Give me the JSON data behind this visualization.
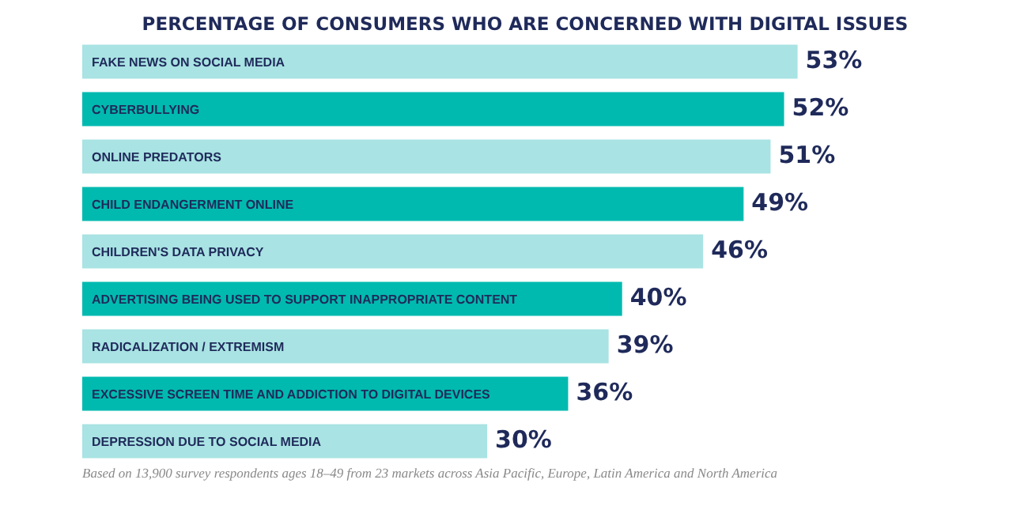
{
  "chart_data": {
    "type": "bar",
    "orientation": "horizontal",
    "title": "PERCENTAGE OF CONSUMERS WHO ARE CONCERNED WITH DIGITAL ISSUES",
    "categories": [
      "FAKE NEWS ON SOCIAL MEDIA",
      "CYBERBULLYING",
      "ONLINE PREDATORS",
      "CHILD ENDANGERMENT ONLINE",
      "CHILDREN'S DATA PRIVACY",
      "ADVERTISING BEING USED TO SUPPORT INAPPROPRIATE CONTENT",
      "RADICALIZATION / EXTREMISM",
      "EXCESSIVE SCREEN TIME AND ADDICTION TO DIGITAL DEVICES",
      "DEPRESSION DUE TO SOCIAL MEDIA"
    ],
    "values": [
      53,
      52,
      51,
      49,
      46,
      40,
      39,
      36,
      30
    ],
    "value_labels": [
      "53%",
      "52%",
      "51%",
      "49%",
      "46%",
      "40%",
      "39%",
      "36%",
      "30%"
    ],
    "colors": [
      "#a9e3e3",
      "#00bab0",
      "#a9e3e3",
      "#00bab0",
      "#a9e3e3",
      "#00bab0",
      "#a9e3e3",
      "#00bab0",
      "#a9e3e3"
    ],
    "legend": false,
    "tick_labels": false,
    "annotations": [
      "Based on 13,900 survey respondents ages 18–49 from 23 markets across Asia Pacific, Europe, Latin America and North America"
    ]
  }
}
